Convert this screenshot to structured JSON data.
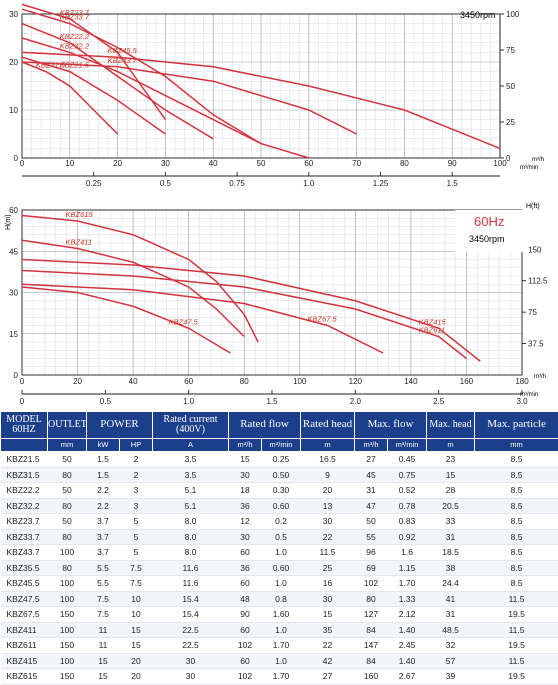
{
  "chart_data": [
    {
      "type": "line",
      "speed_label": "3450rpm",
      "xlabel_primary": "m³/h",
      "xlabel_secondary": "m³/min",
      "ylabel_right": "",
      "xlim": [
        0,
        100
      ],
      "ylim_left": [
        0,
        30
      ],
      "x_ticks_primary": [
        "0",
        "10",
        "20",
        "30",
        "40",
        "50",
        "60",
        "70",
        "80",
        "90",
        "100"
      ],
      "x_ticks_secondary": [
        "0.25",
        "0.5",
        "0.75",
        "1.0",
        "1.25",
        "1.5"
      ],
      "y_ticks_left": [
        "0",
        "10",
        "20",
        "30"
      ],
      "y_ticks_right": [
        "0",
        "25",
        "50",
        "75",
        "100"
      ],
      "series": [
        {
          "name": "KBZ23.7",
          "x": [
            0,
            10,
            20,
            25,
            30
          ],
          "y": [
            32,
            29,
            22,
            15,
            8
          ]
        },
        {
          "name": "KBZ33.7",
          "x": [
            0,
            10,
            20,
            30,
            40,
            50
          ],
          "y": [
            31,
            28,
            23,
            17,
            9,
            3
          ]
        },
        {
          "name": "KBZ22.2",
          "x": [
            0,
            10,
            20,
            30,
            40
          ],
          "y": [
            28,
            24,
            17,
            10,
            4
          ]
        },
        {
          "name": "KBZ32.2",
          "x": [
            0,
            10,
            20,
            30,
            40,
            50,
            60
          ],
          "y": [
            25,
            22,
            18,
            13,
            8,
            3,
            0
          ]
        },
        {
          "name": "KBZ31.5",
          "x": [
            0,
            5,
            10,
            15,
            20
          ],
          "y": [
            20,
            18,
            15,
            10,
            5
          ]
        },
        {
          "name": "KBZ21.5",
          "x": [
            0,
            10,
            20,
            30
          ],
          "y": [
            21,
            18,
            12,
            5
          ]
        },
        {
          "name": "KBZ45.5",
          "x": [
            0,
            20,
            40,
            60,
            80,
            100
          ],
          "y": [
            22,
            21,
            19,
            15,
            10,
            2
          ]
        },
        {
          "name": "KBZ43.7",
          "x": [
            0,
            20,
            40,
            60,
            70
          ],
          "y": [
            20,
            19,
            16,
            10,
            5
          ]
        }
      ]
    },
    {
      "type": "line",
      "frequency_label": "60Hz",
      "speed_label": "3450rpm",
      "xlabel_primary": "m³/h",
      "xlabel_secondary": "m³/min",
      "ylabel_left": "H(m)",
      "ylabel_right": "H(ft)",
      "xlim": [
        0,
        180
      ],
      "ylim_left": [
        0,
        60
      ],
      "x_ticks_primary": [
        "0",
        "20",
        "40",
        "60",
        "80",
        "100",
        "120",
        "140",
        "160",
        "180"
      ],
      "x_ticks_secondary": [
        "0",
        "0.5",
        "1.0",
        "1.5",
        "2.0",
        "2.5",
        "3.0"
      ],
      "y_ticks_left": [
        "0",
        "15",
        "30",
        "45",
        "60"
      ],
      "y_ticks_right": [
        "37.5",
        "75",
        "112.5",
        "150"
      ],
      "series": [
        {
          "name": "KBZ615",
          "x": [
            0,
            20,
            40,
            60,
            70,
            80,
            85
          ],
          "y": [
            58,
            56,
            51,
            42,
            34,
            22,
            12
          ]
        },
        {
          "name": "KBZ411",
          "x": [
            0,
            20,
            40,
            60,
            70,
            80
          ],
          "y": [
            49,
            46,
            41,
            32,
            24,
            14
          ]
        },
        {
          "name": "KBZ415",
          "x": [
            0,
            40,
            80,
            120,
            150,
            165
          ],
          "y": [
            42,
            40,
            36,
            27,
            17,
            5
          ]
        },
        {
          "name": "KBZ611",
          "x": [
            0,
            40,
            80,
            120,
            150,
            160
          ],
          "y": [
            38,
            36,
            32,
            24,
            14,
            6
          ]
        },
        {
          "name": "KBZ67.5",
          "x": [
            0,
            40,
            80,
            110,
            130
          ],
          "y": [
            33,
            31,
            26,
            18,
            8
          ]
        },
        {
          "name": "KBZ47.5",
          "x": [
            0,
            20,
            40,
            60,
            75
          ],
          "y": [
            32,
            30,
            25,
            17,
            8
          ]
        }
      ]
    },
    {
      "type": "table",
      "header_groups": [
        {
          "label": "MODEL\n60HZ",
          "span": 1
        },
        {
          "label": "OUTLET",
          "span": 1
        },
        {
          "label": "POWER",
          "span": 2
        },
        {
          "label": "Rated current\n(400V)",
          "span": 1
        },
        {
          "label": "Rated flow",
          "span": 2
        },
        {
          "label": "Rated head",
          "span": 1
        },
        {
          "label": "Max. flow",
          "span": 2
        },
        {
          "label": "Max. head",
          "span": 1
        },
        {
          "label": "Max. particle",
          "span": 1
        }
      ],
      "units": [
        "",
        "mm",
        "kW",
        "HP",
        "A",
        "m³/h",
        "m³/min",
        "m",
        "m³/h",
        "m³/min",
        "m",
        "mm"
      ],
      "rows": [
        [
          "KBZ21.5",
          "50",
          "1.5",
          "2",
          "3.5",
          "15",
          "0.25",
          "16.5",
          "27",
          "0.45",
          "23",
          "8.5"
        ],
        [
          "KBZ31.5",
          "80",
          "1.5",
          "2",
          "3.5",
          "30",
          "0.50",
          "9",
          "45",
          "0.75",
          "15",
          "8.5"
        ],
        [
          "KBZ22.2",
          "50",
          "2.2",
          "3",
          "5.1",
          "18",
          "0.30",
          "20",
          "31",
          "0.52",
          "28",
          "8.5"
        ],
        [
          "KBZ32.2",
          "80",
          "2.2",
          "3",
          "5.1",
          "36",
          "0.60",
          "13",
          "47",
          "0.78",
          "20.5",
          "8.5"
        ],
        [
          "KBZ23.7",
          "50",
          "3.7",
          "5",
          "8.0",
          "12",
          "0.2",
          "30",
          "50",
          "0.83",
          "33",
          "8.5"
        ],
        [
          "KBZ33.7",
          "80",
          "3.7",
          "5",
          "8.0",
          "30",
          "0.5",
          "22",
          "55",
          "0.92",
          "31",
          "8.5"
        ],
        [
          "KBZ43.7",
          "100",
          "3.7",
          "5",
          "8.0",
          "60",
          "1.0",
          "11.5",
          "96",
          "1.6",
          "18.5",
          "8.5"
        ],
        [
          "KBZ35.5",
          "80",
          "5.5",
          "7.5",
          "11.6",
          "36",
          "0.60",
          "25",
          "69",
          "1.15",
          "38",
          "8.5"
        ],
        [
          "KBZ45.5",
          "100",
          "5.5",
          "7.5",
          "11.6",
          "60",
          "1.0",
          "16",
          "102",
          "1.70",
          "24.4",
          "8.5"
        ],
        [
          "KBZ47.5",
          "100",
          "7.5",
          "10",
          "15.4",
          "48",
          "0.8",
          "30",
          "80",
          "1.33",
          "41",
          "11.5"
        ],
        [
          "KBZ67.5",
          "150",
          "7.5",
          "10",
          "15.4",
          "90",
          "1.60",
          "15",
          "127",
          "2.12",
          "31",
          "19.5"
        ],
        [
          "KBZ411",
          "100",
          "11",
          "15",
          "22.5",
          "60",
          "1.0",
          "35",
          "84",
          "1.40",
          "48.5",
          "11.5"
        ],
        [
          "KBZ611",
          "150",
          "11",
          "15",
          "22.5",
          "102",
          "1.70",
          "22",
          "147",
          "2.45",
          "32",
          "19.5"
        ],
        [
          "KBZ415",
          "100",
          "15",
          "20",
          "30",
          "60",
          "1.0",
          "42",
          "84",
          "1.40",
          "57",
          "11.5"
        ],
        [
          "KBZ615",
          "150",
          "15",
          "20",
          "30",
          "102",
          "1.70",
          "27",
          "160",
          "2.67",
          "39",
          "19.5"
        ]
      ]
    }
  ],
  "colors": {
    "curve": "#d2343f",
    "header_bg": "#1c3f8c",
    "label": "#cc3322"
  }
}
